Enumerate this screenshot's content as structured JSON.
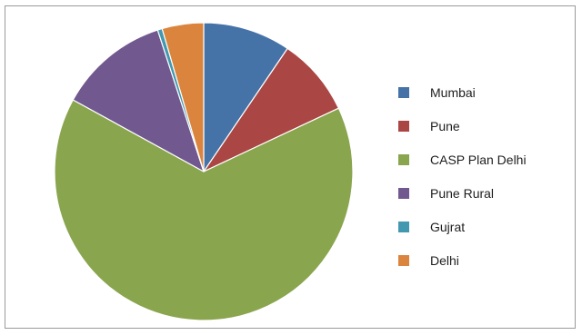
{
  "chart_data": {
    "type": "pie",
    "title": "",
    "legend_position": "right",
    "slices": [
      {
        "label": "Mumbai",
        "value": 9.5,
        "color": "#4572a7"
      },
      {
        "label": "Pune",
        "value": 8.5,
        "color": "#aa4643"
      },
      {
        "label": "CASP Plan Delhi",
        "value": 65.0,
        "color": "#89a54e"
      },
      {
        "label": "Pune Rural",
        "value": 12.0,
        "color": "#71588f"
      },
      {
        "label": "Gujrat",
        "value": 0.5,
        "color": "#4198af"
      },
      {
        "label": "Delhi",
        "value": 4.5,
        "color": "#db843d"
      }
    ]
  }
}
